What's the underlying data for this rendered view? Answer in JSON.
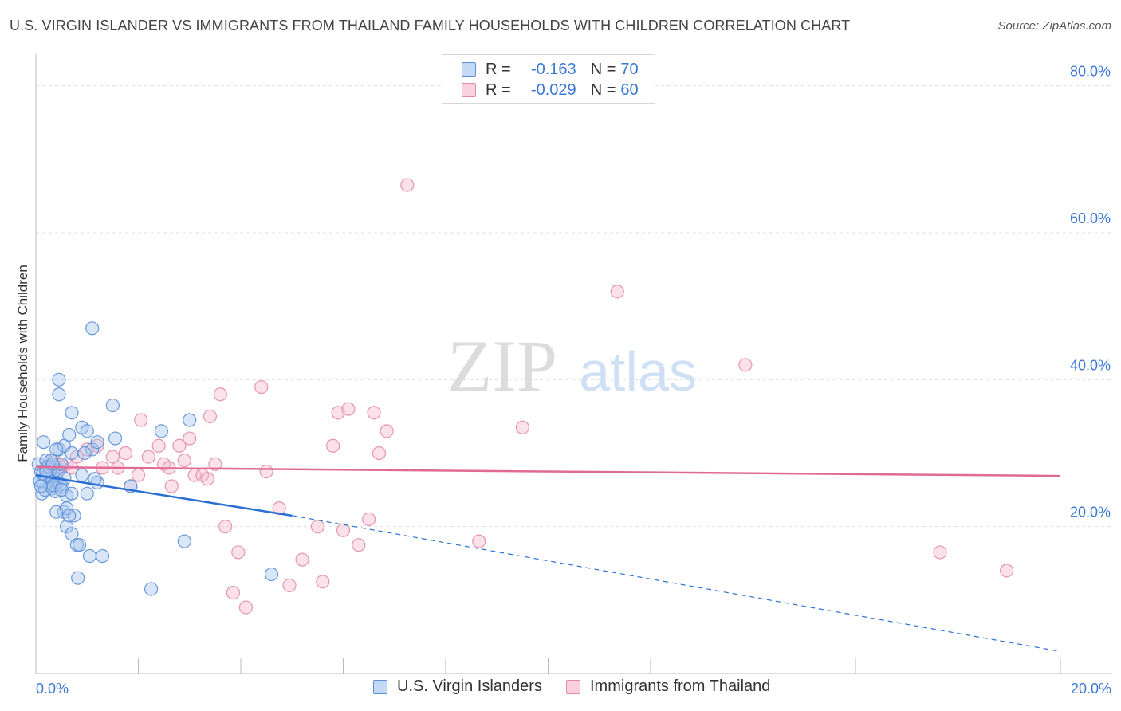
{
  "header": {
    "title": "U.S. VIRGIN ISLANDER VS IMMIGRANTS FROM THAILAND FAMILY HOUSEHOLDS WITH CHILDREN CORRELATION CHART",
    "source": "Source: ZipAtlas.com"
  },
  "colors": {
    "blue_fill": "#a9c8f0",
    "blue_stroke": "#5b8fd6",
    "blue_line": "#2a6fd4",
    "pink_fill": "#f7bfd0",
    "pink_stroke": "#e48aa8",
    "pink_line": "#e06a94",
    "accent_text": "#3b78d4"
  },
  "stats_legend": [
    {
      "r_label": "R =",
      "r_value": "-0.163",
      "n_label": "N =",
      "n_value": "70",
      "series": "blue"
    },
    {
      "r_label": "R =",
      "r_value": "-0.029",
      "n_label": "N =",
      "n_value": "60",
      "series": "pink"
    }
  ],
  "bottom_legend": [
    {
      "label": "U.S. Virgin Islanders",
      "series": "blue"
    },
    {
      "label": "Immigrants from Thailand",
      "series": "pink"
    }
  ],
  "watermark": {
    "zip": "ZIP",
    "atlas": "atlas"
  },
  "chart_data": {
    "type": "scatter",
    "ylabel": "Family Households with Children",
    "xlim": [
      0,
      20
    ],
    "ylim": [
      0,
      83
    ],
    "x_ticks_labeled": [
      {
        "value": 0,
        "label": "0.0%"
      },
      {
        "value": 20,
        "label": "20.0%"
      }
    ],
    "x_minor_ticks": [
      2,
      4,
      6,
      8,
      10,
      12,
      14,
      16,
      18
    ],
    "y_ticks": [
      {
        "value": 20,
        "label": "20.0%"
      },
      {
        "value": 40,
        "label": "40.0%"
      },
      {
        "value": 60,
        "label": "60.0%"
      },
      {
        "value": 80,
        "label": "80.0%"
      }
    ],
    "grid": true,
    "series": [
      {
        "name": "U.S. Virgin Islanders",
        "color": "blue",
        "trend": {
          "x0": 0,
          "y0": 27.0,
          "x1": 5.0,
          "y1": 21.5,
          "dashed_to_x": 20,
          "dashed_to_y": 3.0
        },
        "points": [
          [
            0.05,
            28.5
          ],
          [
            0.1,
            27.5
          ],
          [
            0.15,
            26.0
          ],
          [
            0.2,
            29.0
          ],
          [
            0.25,
            27.0
          ],
          [
            0.3,
            25.5
          ],
          [
            0.35,
            28.0
          ],
          [
            0.4,
            26.5
          ],
          [
            0.12,
            24.5
          ],
          [
            0.18,
            25.0
          ],
          [
            0.22,
            26.8
          ],
          [
            0.28,
            27.8
          ],
          [
            0.32,
            25.2
          ],
          [
            0.38,
            24.8
          ],
          [
            0.42,
            26.0
          ],
          [
            0.48,
            25.8
          ],
          [
            0.08,
            26.2
          ],
          [
            0.14,
            27.2
          ],
          [
            0.24,
            28.2
          ],
          [
            0.34,
            25.6
          ],
          [
            0.44,
            27.6
          ],
          [
            0.52,
            25.4
          ],
          [
            0.56,
            26.6
          ],
          [
            0.6,
            24.2
          ],
          [
            0.15,
            31.5
          ],
          [
            0.3,
            29.0
          ],
          [
            0.45,
            30.5
          ],
          [
            0.55,
            31.0
          ],
          [
            0.65,
            32.5
          ],
          [
            0.7,
            30.0
          ],
          [
            0.4,
            30.5
          ],
          [
            0.5,
            28.5
          ],
          [
            0.7,
            35.5
          ],
          [
            0.9,
            33.5
          ],
          [
            1.0,
            33.0
          ],
          [
            1.1,
            30.5
          ],
          [
            0.95,
            30.0
          ],
          [
            1.55,
            32.0
          ],
          [
            1.2,
            31.5
          ],
          [
            0.45,
            40.0
          ],
          [
            0.45,
            38.0
          ],
          [
            1.5,
            36.5
          ],
          [
            1.1,
            47.0
          ],
          [
            0.55,
            22.0
          ],
          [
            0.4,
            22.0
          ],
          [
            0.6,
            22.5
          ],
          [
            0.75,
            21.5
          ],
          [
            0.6,
            20.0
          ],
          [
            0.65,
            21.5
          ],
          [
            0.7,
            19.0
          ],
          [
            0.8,
            17.5
          ],
          [
            0.85,
            17.5
          ],
          [
            1.05,
            16.0
          ],
          [
            1.3,
            16.0
          ],
          [
            0.82,
            13.0
          ],
          [
            2.25,
            11.5
          ],
          [
            2.9,
            18.0
          ],
          [
            4.6,
            13.5
          ],
          [
            0.5,
            25.0
          ],
          [
            0.7,
            24.5
          ],
          [
            1.0,
            24.5
          ],
          [
            1.2,
            26.0
          ],
          [
            1.15,
            26.5
          ],
          [
            1.85,
            25.5
          ],
          [
            2.45,
            33.0
          ],
          [
            3.0,
            34.5
          ],
          [
            0.9,
            27.0
          ],
          [
            0.2,
            27.5
          ],
          [
            0.1,
            25.5
          ],
          [
            0.33,
            28.5
          ]
        ]
      },
      {
        "name": "Immigrants from Thailand",
        "color": "pink",
        "trend": {
          "x0": 0,
          "y0": 28.1,
          "x1": 20,
          "y1": 26.9
        },
        "points": [
          [
            0.2,
            28.0
          ],
          [
            0.3,
            27.0
          ],
          [
            0.35,
            29.0
          ],
          [
            0.4,
            27.5
          ],
          [
            0.5,
            28.0
          ],
          [
            0.6,
            28.5
          ],
          [
            0.3,
            26.5
          ],
          [
            0.45,
            28.5
          ],
          [
            0.7,
            28.0
          ],
          [
            0.8,
            29.5
          ],
          [
            1.0,
            30.5
          ],
          [
            1.2,
            31.0
          ],
          [
            1.3,
            28.0
          ],
          [
            1.5,
            29.5
          ],
          [
            1.6,
            28.0
          ],
          [
            1.75,
            30.0
          ],
          [
            1.85,
            25.5
          ],
          [
            2.0,
            27.0
          ],
          [
            2.05,
            34.5
          ],
          [
            2.2,
            29.5
          ],
          [
            2.4,
            31.0
          ],
          [
            2.5,
            28.5
          ],
          [
            2.6,
            28.0
          ],
          [
            2.65,
            25.5
          ],
          [
            2.8,
            31.0
          ],
          [
            2.9,
            29.0
          ],
          [
            3.0,
            32.0
          ],
          [
            3.1,
            27.0
          ],
          [
            3.25,
            27.0
          ],
          [
            3.35,
            26.5
          ],
          [
            3.4,
            35.0
          ],
          [
            3.5,
            28.5
          ],
          [
            3.6,
            38.0
          ],
          [
            3.7,
            20.0
          ],
          [
            3.85,
            11.0
          ],
          [
            3.95,
            16.5
          ],
          [
            4.1,
            9.0
          ],
          [
            4.5,
            27.5
          ],
          [
            4.4,
            39.0
          ],
          [
            4.75,
            22.5
          ],
          [
            4.95,
            12.0
          ],
          [
            5.2,
            15.5
          ],
          [
            5.5,
            20.0
          ],
          [
            5.6,
            12.5
          ],
          [
            5.8,
            31.0
          ],
          [
            5.9,
            35.5
          ],
          [
            6.1,
            36.0
          ],
          [
            6.0,
            19.5
          ],
          [
            6.3,
            17.5
          ],
          [
            6.5,
            21.0
          ],
          [
            6.6,
            35.5
          ],
          [
            6.7,
            30.0
          ],
          [
            6.85,
            33.0
          ],
          [
            7.25,
            66.5
          ],
          [
            8.65,
            18.0
          ],
          [
            9.5,
            33.5
          ],
          [
            11.35,
            52.0
          ],
          [
            13.85,
            42.0
          ],
          [
            17.65,
            16.5
          ],
          [
            18.95,
            14.0
          ]
        ]
      }
    ]
  }
}
